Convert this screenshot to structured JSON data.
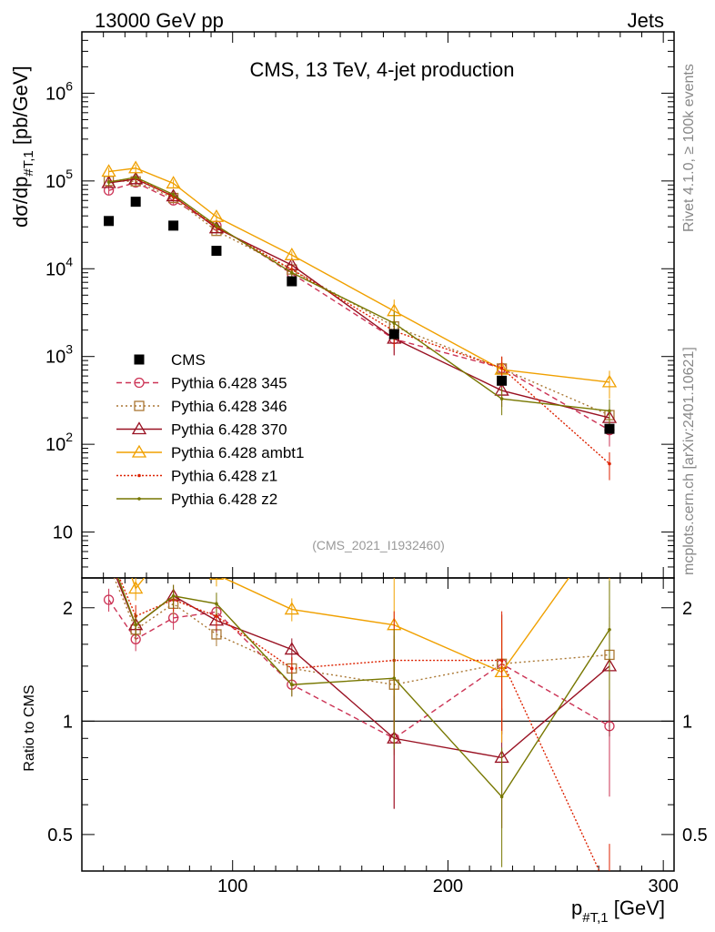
{
  "header": {
    "left": "13000 GeV pp",
    "right": "Jets"
  },
  "side_text": {
    "version": "Rivet 4.1.0, ≥ 100k events",
    "site": "mcplots.cern.ch [arXiv:2401.10621]"
  },
  "chart_data": {
    "type": "line",
    "title": "CMS, 13 TeV, 4-jet production",
    "analysis_id": "(CMS_2021_I1932460)",
    "xlabel_main": "p",
    "xlabel_sub": "#T,1",
    "xlabel_unit": " [GeV]",
    "ylabel_pre": "dσ/dp",
    "ylabel_sub": "#T,1",
    "ylabel_unit": " [pb/GeV]",
    "ratio_ylabel": "Ratio to CMS",
    "xlim": [
      30,
      305
    ],
    "ylim_log": [
      3,
      5000000
    ],
    "ratio_ylim": [
      0.4,
      2.4
    ],
    "x_ticks": [
      100,
      200,
      300
    ],
    "x_tick_labels": [
      "100",
      "200",
      "300"
    ],
    "y_ticks": [
      10,
      100,
      1000,
      10000,
      100000,
      1000000
    ],
    "y_tick_labels": [
      {
        "base": "10",
        "exp": ""
      },
      {
        "base": "10",
        "exp": "2"
      },
      {
        "base": "10",
        "exp": "3"
      },
      {
        "base": "10",
        "exp": "4"
      },
      {
        "base": "10",
        "exp": "5"
      },
      {
        "base": "10",
        "exp": "6"
      }
    ],
    "ratio_ticks": [
      0.5,
      1,
      2
    ],
    "ratio_tick_labels": [
      "0.5",
      "1",
      "2"
    ],
    "x": [
      42.5,
      55,
      72.5,
      92.5,
      127.5,
      175,
      225,
      275
    ],
    "data": {
      "name": "CMS",
      "values": [
        35000,
        58000,
        31000,
        16000,
        7200,
        1800,
        530,
        150
      ]
    },
    "series": [
      {
        "name": "Pythia 6.428 345",
        "color": "#cc3355",
        "dash": "6,4",
        "marker": "circle",
        "values": [
          78000,
          96000,
          60000,
          31000,
          8800,
          1580,
          740,
          145
        ],
        "ratio": [
          2.1,
          1.65,
          1.88,
          1.95,
          1.25,
          0.9,
          1.42,
          0.97
        ]
      },
      {
        "name": "Pythia 6.428 346",
        "color": "#aa7733",
        "dash": "2,3",
        "marker": "square",
        "values": [
          100000,
          99000,
          64000,
          27000,
          9800,
          2200,
          730,
          215
        ],
        "ratio": [
          2.6,
          1.75,
          2.05,
          1.7,
          1.38,
          1.25,
          1.42,
          1.5
        ]
      },
      {
        "name": "Pythia 6.428 370",
        "color": "#991122",
        "dash": "",
        "marker": "triangle",
        "values": [
          95000,
          105000,
          67000,
          29000,
          11000,
          1600,
          410,
          200
        ],
        "ratio": [
          2.7,
          1.8,
          2.15,
          1.85,
          1.55,
          0.9,
          0.8,
          1.4
        ]
      },
      {
        "name": "Pythia 6.428 ambt1",
        "color": "#f0a000",
        "dash": "",
        "marker": "triangle",
        "values": [
          128000,
          140000,
          94000,
          39000,
          14300,
          3300,
          710,
          510
        ],
        "ratio": [
          3.6,
          2.25,
          3.0,
          2.45,
          1.98,
          1.8,
          1.35,
          3.4
        ]
      },
      {
        "name": "Pythia 6.428 z1",
        "color": "#dd2200",
        "dash": "2,2",
        "marker": "dot",
        "values": [
          98000,
          108000,
          66000,
          30000,
          9800,
          1950,
          740,
          60
        ],
        "ratio": [
          2.8,
          1.9,
          2.1,
          1.9,
          1.38,
          1.45,
          1.45,
          0.35
        ]
      },
      {
        "name": "Pythia 6.428 z2",
        "color": "#777700",
        "dash": "",
        "marker": "dot",
        "values": [
          97000,
          110000,
          70000,
          31000,
          9000,
          2400,
          330,
          240
        ],
        "ratio": [
          2.8,
          1.8,
          2.15,
          2.05,
          1.25,
          1.3,
          0.63,
          1.75
        ]
      }
    ]
  }
}
